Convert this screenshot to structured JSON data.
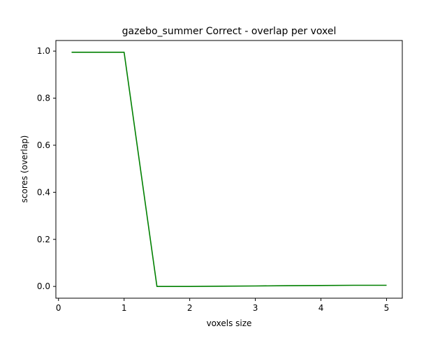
{
  "chart_data": {
    "type": "line",
    "title": "gazebo_summer Correct - overlap per voxel",
    "xlabel": "voxels size",
    "ylabel": "scores (overlap)",
    "xlim": [
      -0.04,
      5.24
    ],
    "ylim": [
      -0.05,
      1.045
    ],
    "x_ticks": [
      0,
      1,
      2,
      3,
      4,
      5
    ],
    "y_ticks": [
      0.0,
      0.2,
      0.4,
      0.6,
      0.8,
      1.0
    ],
    "x_tick_labels": [
      "0",
      "1",
      "2",
      "3",
      "4",
      "5"
    ],
    "y_tick_labels": [
      "0.0",
      "0.2",
      "0.4",
      "0.6",
      "0.8",
      "1.0"
    ],
    "grid": false,
    "series": [
      {
        "color": "#008000",
        "x": [
          0.2,
          1.0,
          1.5,
          2.0,
          2.5,
          3.0,
          3.5,
          4.0,
          4.5,
          5.0
        ],
        "y": [
          0.995,
          0.995,
          0.0,
          0.0,
          0.001,
          0.002,
          0.003,
          0.004,
          0.005,
          0.005
        ]
      }
    ]
  }
}
